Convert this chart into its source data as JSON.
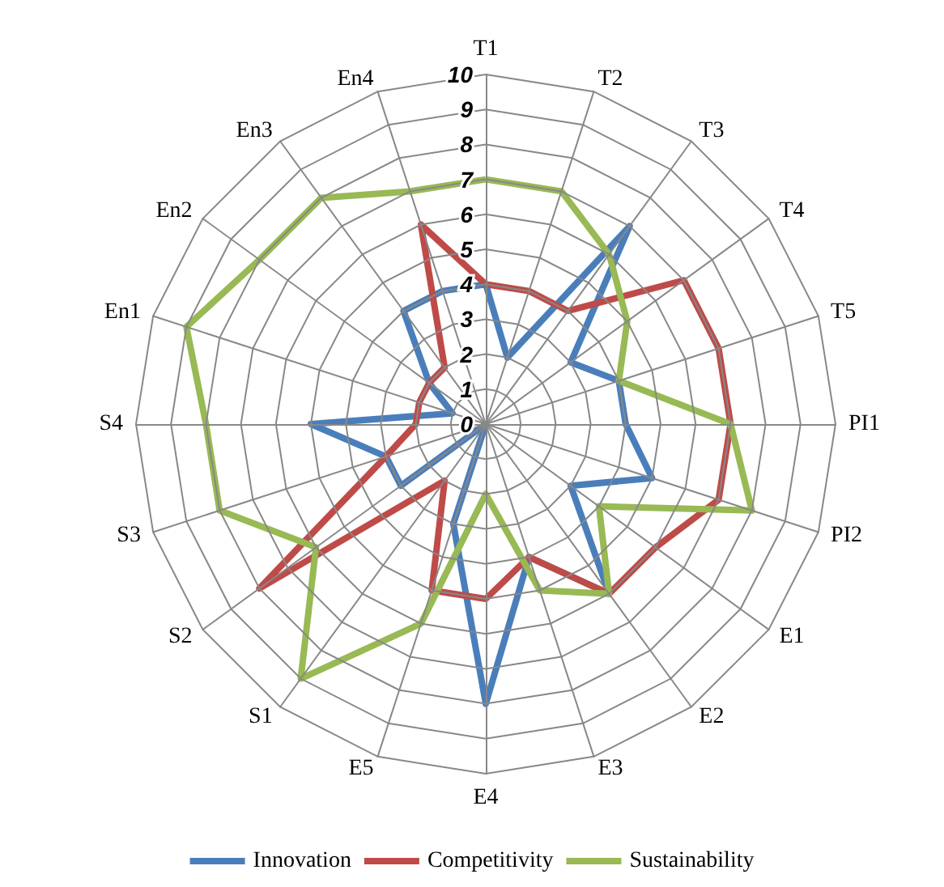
{
  "chart_data": {
    "type": "radar",
    "categories": [
      "T1",
      "T2",
      "T3",
      "T4",
      "T5",
      "PI1",
      "PI2",
      "E1",
      "E2",
      "E3",
      "E4",
      "E5",
      "S1",
      "S2",
      "S3",
      "S4",
      "En1",
      "En2",
      "En3",
      "En4"
    ],
    "series": [
      {
        "name": "Innovation",
        "color": "#4a7ebb",
        "values": [
          4,
          2,
          7,
          3,
          4,
          4,
          5,
          3,
          6,
          4,
          8,
          3,
          0,
          3,
          3,
          5,
          1,
          2,
          4,
          4
        ]
      },
      {
        "name": "Competitivity",
        "color": "#be4b48",
        "values": [
          4,
          4,
          4,
          7,
          7,
          7,
          7,
          6,
          6,
          4,
          5,
          5,
          2,
          8,
          3,
          2,
          2,
          2,
          2,
          6
        ]
      },
      {
        "name": "Sustainability",
        "color": "#98b954",
        "values": [
          7,
          7,
          6,
          5,
          4,
          7,
          8,
          4,
          6,
          5,
          2,
          6,
          9,
          6,
          8,
          8,
          9,
          8,
          8,
          7
        ]
      }
    ],
    "ylim": [
      0,
      10
    ],
    "yticks": [
      0,
      1,
      2,
      3,
      4,
      5,
      6,
      7,
      8,
      9,
      10
    ],
    "legend": "bottom",
    "marker": "none",
    "line_style": "solid"
  }
}
